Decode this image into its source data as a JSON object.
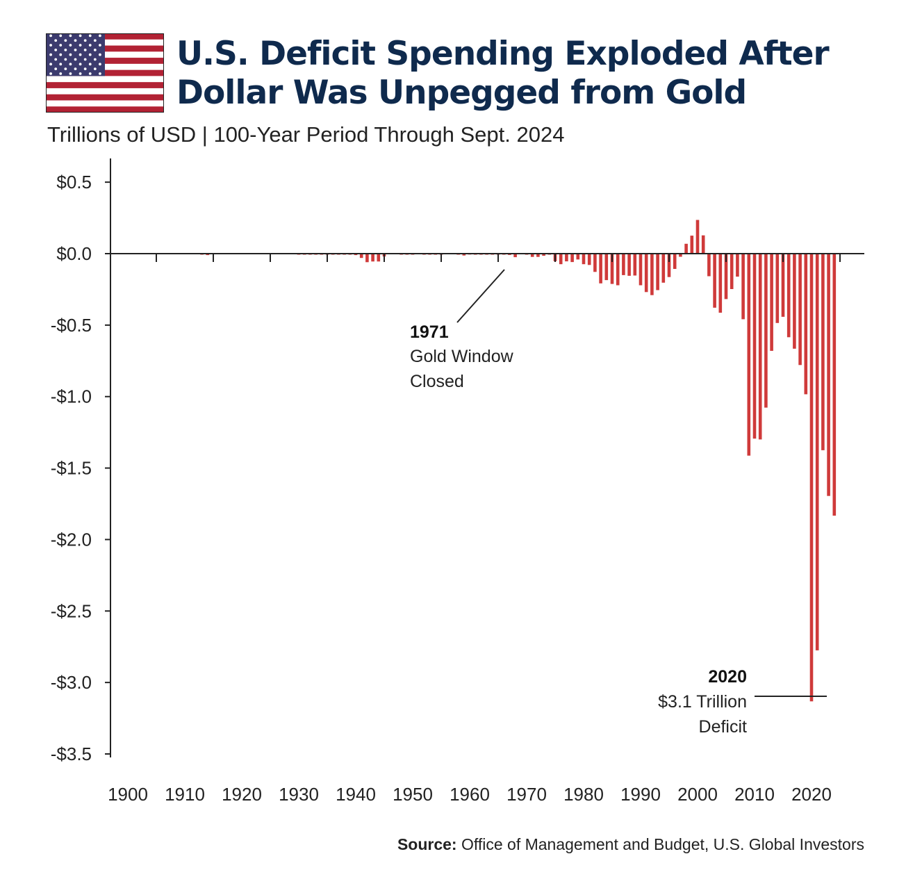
{
  "header": {
    "flag_icon": "us-flag-icon",
    "title_line1": "U.S. Deficit Spending Exploded After",
    "title_line2": "Dollar Was Unpegged from Gold",
    "subtitle": "Trillions of USD | 100-Year Period Through Sept. 2024"
  },
  "colors": {
    "bar": "#cf3a3a",
    "title": "#0f2a4d",
    "axis": "#222222"
  },
  "chart_data": {
    "type": "bar",
    "xlim": [
      1895,
      2027
    ],
    "ylim": [
      -3.5,
      0.5
    ],
    "yticks": [
      0.5,
      0.0,
      -0.5,
      -1.0,
      -1.5,
      -2.0,
      -2.5,
      -3.0,
      -3.5
    ],
    "ytick_labels": [
      "$0.5",
      "$0.0",
      "-$0.5",
      "-$1.0",
      "-$1.5",
      "-$2.0",
      "-$2.5",
      "-$3.0",
      "-$3.5"
    ],
    "xticks": [
      1900,
      1910,
      1920,
      1930,
      1940,
      1950,
      1960,
      1970,
      1980,
      1990,
      2000,
      2010,
      2020
    ],
    "xtick_labels": [
      "1900",
      "1910",
      "1920",
      "1930",
      "1940",
      "1950",
      "1960",
      "1970",
      "1980",
      "1990",
      "2000",
      "2010",
      "2020"
    ],
    "grid": false,
    "x": [
      1901,
      1902,
      1903,
      1904,
      1905,
      1906,
      1907,
      1908,
      1909,
      1910,
      1911,
      1912,
      1913,
      1914,
      1915,
      1916,
      1917,
      1918,
      1919,
      1920,
      1921,
      1922,
      1923,
      1924,
      1925,
      1926,
      1927,
      1928,
      1929,
      1930,
      1931,
      1932,
      1933,
      1934,
      1935,
      1936,
      1937,
      1938,
      1939,
      1940,
      1941,
      1942,
      1943,
      1944,
      1945,
      1946,
      1947,
      1948,
      1949,
      1950,
      1951,
      1952,
      1953,
      1954,
      1955,
      1956,
      1957,
      1958,
      1959,
      1960,
      1961,
      1962,
      1963,
      1964,
      1965,
      1966,
      1967,
      1968,
      1969,
      1970,
      1971,
      1972,
      1973,
      1974,
      1975,
      1976,
      1977,
      1978,
      1979,
      1980,
      1981,
      1982,
      1983,
      1984,
      1985,
      1986,
      1987,
      1988,
      1989,
      1990,
      1991,
      1992,
      1993,
      1994,
      1995,
      1996,
      1997,
      1998,
      1999,
      2000,
      2001,
      2002,
      2003,
      2004,
      2005,
      2006,
      2007,
      2008,
      2009,
      2010,
      2011,
      2012,
      2013,
      2014,
      2015,
      2016,
      2017,
      2018,
      2019,
      2020,
      2021,
      2022,
      2023,
      2024
    ],
    "values": [
      0,
      0,
      0,
      0,
      0,
      0,
      0,
      0,
      0,
      0,
      0,
      0,
      -0.005,
      -0.01,
      0,
      0,
      0,
      0,
      0,
      0,
      0,
      0,
      0,
      0,
      0,
      0,
      0,
      0,
      0,
      -0.003,
      -0.003,
      -0.003,
      -0.004,
      -0.004,
      -0.004,
      -0.005,
      -0.003,
      -0.003,
      -0.004,
      -0.01,
      -0.03,
      -0.06,
      -0.055,
      -0.055,
      -0.02,
      0.005,
      0.004,
      -0.004,
      -0.002,
      -0.001,
      0.004,
      -0.003,
      -0.007,
      -0.002,
      -0.003,
      0.004,
      0.003,
      -0.003,
      -0.013,
      0.001,
      -0.003,
      -0.007,
      -0.005,
      -0.006,
      -0.001,
      -0.004,
      -0.009,
      -0.025,
      0.003,
      -0.003,
      -0.023,
      -0.023,
      -0.015,
      -0.006,
      -0.053,
      -0.074,
      -0.054,
      -0.059,
      -0.041,
      -0.074,
      -0.079,
      -0.128,
      -0.208,
      -0.185,
      -0.212,
      -0.221,
      -0.15,
      -0.155,
      -0.153,
      -0.221,
      -0.269,
      -0.29,
      -0.255,
      -0.203,
      -0.164,
      -0.107,
      -0.022,
      0.069,
      0.126,
      0.236,
      0.128,
      -0.158,
      -0.378,
      -0.413,
      -0.318,
      -0.248,
      -0.161,
      -0.459,
      -1.413,
      -1.294,
      -1.3,
      -1.077,
      -0.68,
      -0.485,
      -0.442,
      -0.585,
      -0.665,
      -0.779,
      -0.984,
      -3.132,
      -2.775,
      -1.375,
      -1.695,
      -1.833
    ]
  },
  "annotations": {
    "a1971_year": "1971",
    "a1971_line1": "Gold Window",
    "a1971_line2": "Closed",
    "a2020_year": "2020",
    "a2020_line1": "$3.1 Trillion",
    "a2020_line2": "Deficit"
  },
  "source": {
    "label": "Source:",
    "text": "Office of Management and Budget, U.S. Global Investors"
  }
}
